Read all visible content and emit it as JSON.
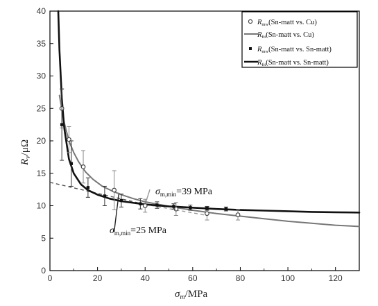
{
  "chart_data": {
    "type": "line",
    "title": "",
    "xlabel": "σm/MPa",
    "ylabel": "Rv/μΩ",
    "xlim": [
      0,
      130
    ],
    "ylim": [
      0,
      40
    ],
    "x_ticks": [
      "0",
      "20",
      "40",
      "60",
      "80",
      "100",
      "120"
    ],
    "y_ticks": [
      "0",
      "5",
      "10",
      "15",
      "20",
      "25",
      "30",
      "35",
      "40"
    ],
    "grid": false,
    "legend_position": "top-right",
    "series": [
      {
        "name": "Rmw(Sn-matt vs. Cu)",
        "kind": "scatter",
        "marker": "open-circle",
        "color": "#555555",
        "points": [
          {
            "x": 5,
            "y": 25.0,
            "err": 3.0
          },
          {
            "x": 8,
            "y": 20.2,
            "err": 2.0
          },
          {
            "x": 14,
            "y": 16.0,
            "err": 2.5
          },
          {
            "x": 27,
            "y": 12.4,
            "err": 3.0
          },
          {
            "x": 40,
            "y": 10.0,
            "err": 1.0
          },
          {
            "x": 53,
            "y": 9.5,
            "err": 1.0
          },
          {
            "x": 66,
            "y": 8.8,
            "err": 1.0
          },
          {
            "x": 79,
            "y": 8.6,
            "err": 0.8
          }
        ]
      },
      {
        "name": "Rfit(Sn-matt vs. Cu)",
        "kind": "line",
        "color": "#777777",
        "width": 2,
        "x": [
          4,
          6,
          8,
          10,
          12,
          15,
          18,
          22,
          26,
          30,
          35,
          40,
          50,
          60,
          70,
          80,
          90,
          100,
          110,
          120,
          130
        ],
        "y": [
          27.0,
          22.8,
          20.0,
          18.2,
          16.8,
          15.2,
          14.1,
          13.0,
          12.3,
          11.7,
          11.1,
          10.6,
          9.9,
          9.3,
          8.8,
          8.4,
          8.0,
          7.6,
          7.3,
          7.0,
          6.8
        ]
      },
      {
        "name": "Rmw(Sn-matt vs. Sn-matt)",
        "kind": "scatter",
        "marker": "filled-square",
        "color": "#111111",
        "points": [
          {
            "x": 5,
            "y": 22.5,
            "err": 5.5
          },
          {
            "x": 9,
            "y": 16.5,
            "err": 3.5
          },
          {
            "x": 16,
            "y": 12.8,
            "err": 1.5
          },
          {
            "x": 23,
            "y": 11.5,
            "err": 1.5
          },
          {
            "x": 30,
            "y": 10.8,
            "err": 1.0
          },
          {
            "x": 38,
            "y": 10.3,
            "err": 0.8
          },
          {
            "x": 45,
            "y": 10.1,
            "err": 0.5
          },
          {
            "x": 52,
            "y": 9.9,
            "err": 0.4
          },
          {
            "x": 59,
            "y": 9.7,
            "err": 0.4
          },
          {
            "x": 66,
            "y": 9.6,
            "err": 0.3
          },
          {
            "x": 74,
            "y": 9.5,
            "err": 0.3
          }
        ]
      },
      {
        "name": "Rfit(Sn-matt vs. Sn-matt)",
        "kind": "line",
        "color": "#111111",
        "width": 2.6,
        "x": [
          3.5,
          4,
          5,
          6,
          8,
          10,
          13,
          16,
          20,
          25,
          30,
          40,
          50,
          60,
          70,
          80,
          90,
          100,
          110,
          120,
          130
        ],
        "y": [
          40.0,
          34.0,
          26.5,
          22.0,
          17.2,
          15.0,
          13.3,
          12.4,
          11.7,
          11.1,
          10.7,
          10.2,
          9.9,
          9.7,
          9.5,
          9.35,
          9.25,
          9.15,
          9.05,
          9.0,
          8.95
        ]
      }
    ],
    "reference_lines": [
      {
        "style": "dashed",
        "color": "#555555",
        "x": [
          0,
          40
        ],
        "y": [
          13.6,
          10.2
        ]
      },
      {
        "style": "dashed",
        "color": "#999999",
        "x": [
          40,
          66
        ],
        "y": [
          10.2,
          8.5
        ]
      },
      {
        "style": "solid",
        "color": "#222222",
        "x": [
          27,
          29
        ],
        "y": [
          6.0,
          12.0
        ]
      },
      {
        "style": "solid",
        "color": "#999999",
        "x": [
          40,
          42
        ],
        "y": [
          10.2,
          12.5
        ]
      }
    ],
    "annotations": [
      {
        "sym": "σ",
        "sub": "m,min",
        "value": "=39 MPa"
      },
      {
        "sym": "σ",
        "sub": "m,min",
        "value": "=25 MPa"
      }
    ]
  },
  "legend_labels": {
    "r_sym": "R",
    "mw_sub": "mw",
    "fit_sub": "fit",
    "s1_text": "(Sn-matt vs. Cu)",
    "s2_text": "(Sn-matt vs. Cu)",
    "s3_text": "(Sn-matt vs. Sn-matt)",
    "s4_text": "(Sn-matt vs. Sn-matt)"
  },
  "axis_labels": {
    "x_sym": "σ",
    "x_sub": "m",
    "x_unit": "/MPa",
    "y_sym": "R",
    "y_sub": "v",
    "y_unit": "/μΩ"
  }
}
